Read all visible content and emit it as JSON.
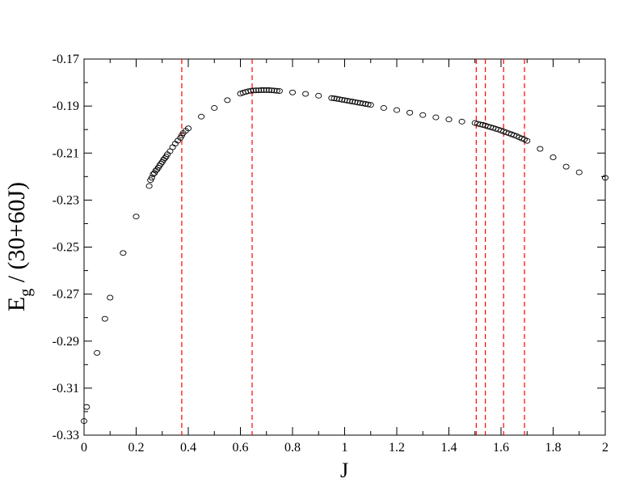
{
  "chart_data": {
    "type": "scatter",
    "xlabel": "J",
    "ylabel_main": "E",
    "ylabel_sub": "g",
    "ylabel_rest": " / (30+60J)",
    "xlim": [
      0,
      2
    ],
    "ylim": [
      -0.33,
      -0.17
    ],
    "x_ticks": [
      0,
      0.2,
      0.4,
      0.6,
      0.8,
      1,
      1.2,
      1.4,
      1.6,
      1.8,
      2
    ],
    "x_tick_labels": [
      "0",
      "0.2",
      "0.4",
      "0.6",
      "0.8",
      "1",
      "1.2",
      "1.4",
      "1.6",
      "1.8",
      "2"
    ],
    "y_ticks": [
      -0.17,
      -0.19,
      -0.21,
      -0.23,
      -0.25,
      -0.27,
      -0.29,
      -0.31,
      -0.33
    ],
    "y_tick_labels": [
      "-0.17",
      "-0.19",
      "-0.21",
      "-0.23",
      "-0.25",
      "-0.27",
      "-0.29",
      "-0.31",
      "-0.33"
    ],
    "grid": false,
    "marker_color": "#000000",
    "vline_color": "#ff0000",
    "vlines": [
      0.375,
      0.645,
      1.505,
      1.54,
      1.61,
      1.69
    ],
    "points": [
      [
        0.0,
        -0.324
      ],
      [
        0.01,
        -0.318
      ],
      [
        0.05,
        -0.295
      ],
      [
        0.08,
        -0.2805
      ],
      [
        0.1,
        -0.2715
      ],
      [
        0.15,
        -0.2525
      ],
      [
        0.2,
        -0.237
      ],
      [
        0.25,
        -0.224
      ],
      [
        0.255,
        -0.2215
      ],
      [
        0.26,
        -0.2205
      ],
      [
        0.265,
        -0.219
      ],
      [
        0.27,
        -0.2185
      ],
      [
        0.275,
        -0.2175
      ],
      [
        0.28,
        -0.217
      ],
      [
        0.285,
        -0.2162
      ],
      [
        0.29,
        -0.2153
      ],
      [
        0.295,
        -0.2145
      ],
      [
        0.3,
        -0.2138
      ],
      [
        0.305,
        -0.2128
      ],
      [
        0.31,
        -0.2122
      ],
      [
        0.315,
        -0.2115
      ],
      [
        0.32,
        -0.2105
      ],
      [
        0.33,
        -0.2092
      ],
      [
        0.34,
        -0.2075
      ],
      [
        0.35,
        -0.206
      ],
      [
        0.36,
        -0.2047
      ],
      [
        0.37,
        -0.2035
      ],
      [
        0.375,
        -0.2025
      ],
      [
        0.38,
        -0.2015
      ],
      [
        0.39,
        -0.2005
      ],
      [
        0.4,
        -0.1995
      ],
      [
        0.45,
        -0.1945
      ],
      [
        0.5,
        -0.1908
      ],
      [
        0.55,
        -0.1875
      ],
      [
        0.6,
        -0.1847
      ],
      [
        0.61,
        -0.1843
      ],
      [
        0.62,
        -0.184
      ],
      [
        0.63,
        -0.1837
      ],
      [
        0.64,
        -0.1835
      ],
      [
        0.65,
        -0.1834
      ],
      [
        0.66,
        -0.1833
      ],
      [
        0.67,
        -0.1833
      ],
      [
        0.68,
        -0.1832
      ],
      [
        0.69,
        -0.1832
      ],
      [
        0.7,
        -0.1832
      ],
      [
        0.71,
        -0.1832
      ],
      [
        0.72,
        -0.1833
      ],
      [
        0.73,
        -0.1834
      ],
      [
        0.74,
        -0.1835
      ],
      [
        0.75,
        -0.1836
      ],
      [
        0.8,
        -0.1842
      ],
      [
        0.85,
        -0.1848
      ],
      [
        0.9,
        -0.1856
      ],
      [
        0.95,
        -0.1866
      ],
      [
        0.96,
        -0.1867
      ],
      [
        0.97,
        -0.1869
      ],
      [
        0.98,
        -0.1871
      ],
      [
        0.99,
        -0.1873
      ],
      [
        1.0,
        -0.1875
      ],
      [
        1.01,
        -0.1877
      ],
      [
        1.02,
        -0.1879
      ],
      [
        1.03,
        -0.1881
      ],
      [
        1.04,
        -0.1883
      ],
      [
        1.05,
        -0.1885
      ],
      [
        1.06,
        -0.1887
      ],
      [
        1.07,
        -0.1889
      ],
      [
        1.08,
        -0.1891
      ],
      [
        1.09,
        -0.1893
      ],
      [
        1.1,
        -0.1895
      ],
      [
        1.15,
        -0.1908
      ],
      [
        1.2,
        -0.1917
      ],
      [
        1.25,
        -0.1928
      ],
      [
        1.3,
        -0.1938
      ],
      [
        1.35,
        -0.1948
      ],
      [
        1.4,
        -0.1957
      ],
      [
        1.45,
        -0.1966
      ],
      [
        1.5,
        -0.1972
      ],
      [
        1.51,
        -0.1975
      ],
      [
        1.52,
        -0.1978
      ],
      [
        1.53,
        -0.198
      ],
      [
        1.54,
        -0.1983
      ],
      [
        1.55,
        -0.1987
      ],
      [
        1.56,
        -0.199
      ],
      [
        1.57,
        -0.1993
      ],
      [
        1.58,
        -0.1997
      ],
      [
        1.59,
        -0.2
      ],
      [
        1.6,
        -0.2004
      ],
      [
        1.61,
        -0.2008
      ],
      [
        1.62,
        -0.2012
      ],
      [
        1.63,
        -0.2016
      ],
      [
        1.64,
        -0.202
      ],
      [
        1.65,
        -0.2024
      ],
      [
        1.66,
        -0.2028
      ],
      [
        1.67,
        -0.2033
      ],
      [
        1.68,
        -0.2038
      ],
      [
        1.69,
        -0.2042
      ],
      [
        1.7,
        -0.2048
      ],
      [
        1.75,
        -0.2082
      ],
      [
        1.8,
        -0.2118
      ],
      [
        1.85,
        -0.2158
      ],
      [
        1.9,
        -0.2182
      ],
      [
        2.0,
        -0.2205
      ]
    ]
  }
}
